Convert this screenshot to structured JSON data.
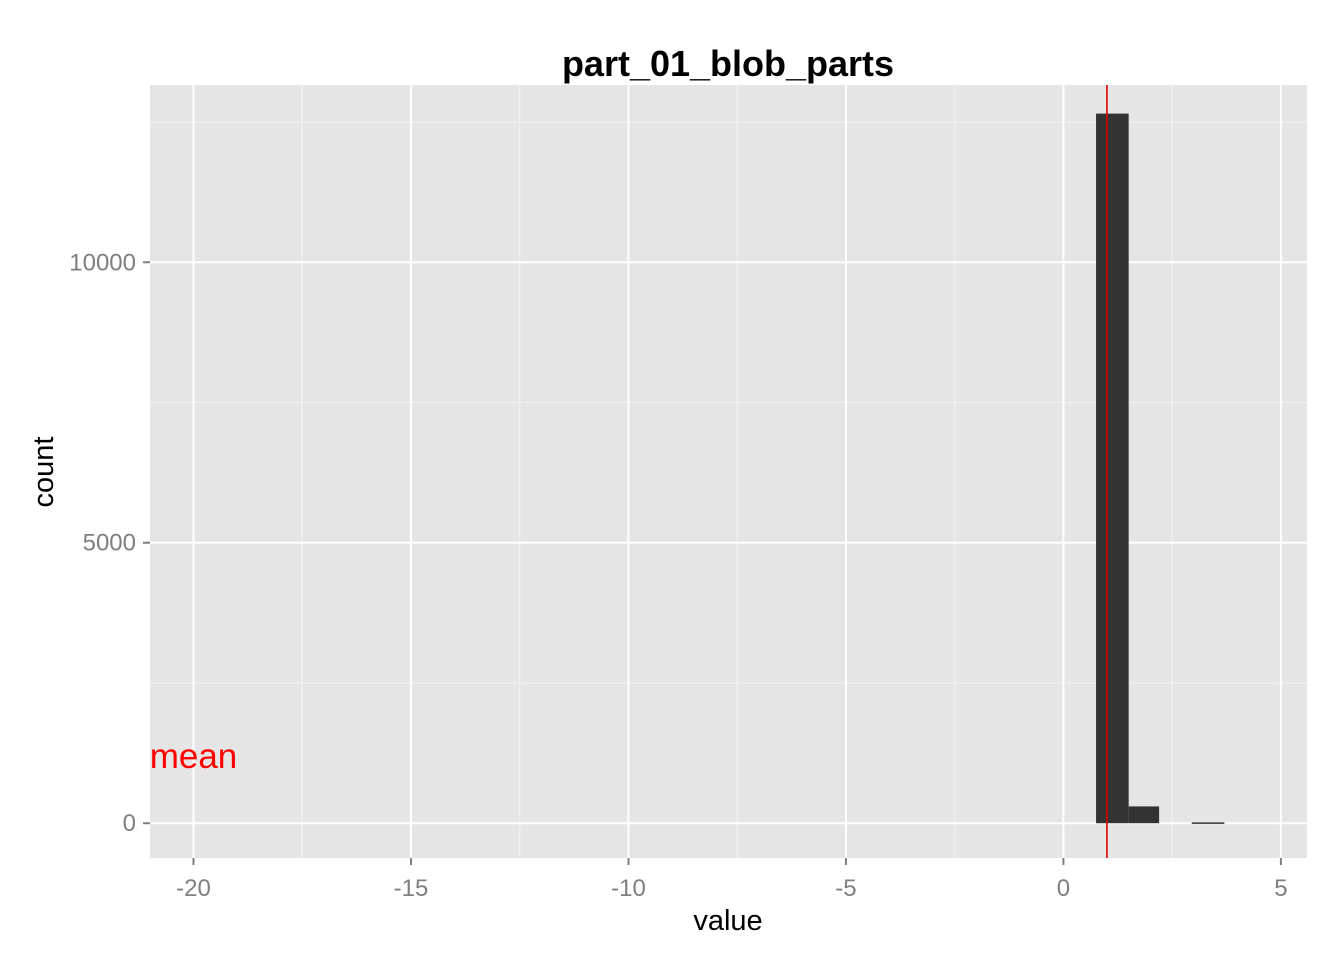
{
  "chart_data": {
    "type": "bar",
    "title": "part_01_blob_parts",
    "xlabel": "value",
    "ylabel": "count",
    "xlim": [
      -21,
      5.6
    ],
    "ylim": [
      -620,
      13160
    ],
    "x_ticks": [
      -20,
      -15,
      -10,
      -5,
      0,
      5
    ],
    "x_tick_labels": [
      "-20",
      "-15",
      "-10",
      "-5",
      "0",
      "5"
    ],
    "y_ticks": [
      0,
      5000,
      10000
    ],
    "y_tick_labels": [
      "0",
      "5000",
      "10000"
    ],
    "grid": true,
    "bins": [
      {
        "x0": 0.75,
        "x1": 1.5,
        "count": 12650
      },
      {
        "x0": 1.5,
        "x1": 2.2,
        "count": 300
      },
      {
        "x0": 2.95,
        "x1": 3.7,
        "count": 15
      }
    ],
    "mean_line": {
      "x": 1.0,
      "color": "#e00000"
    },
    "annotation": {
      "text": "mean",
      "x": -20,
      "y": 1200,
      "color": "#ff0000"
    },
    "colors": {
      "panel": "#e5e5e5",
      "bar": "#333333",
      "grid": "#ffffff"
    }
  }
}
